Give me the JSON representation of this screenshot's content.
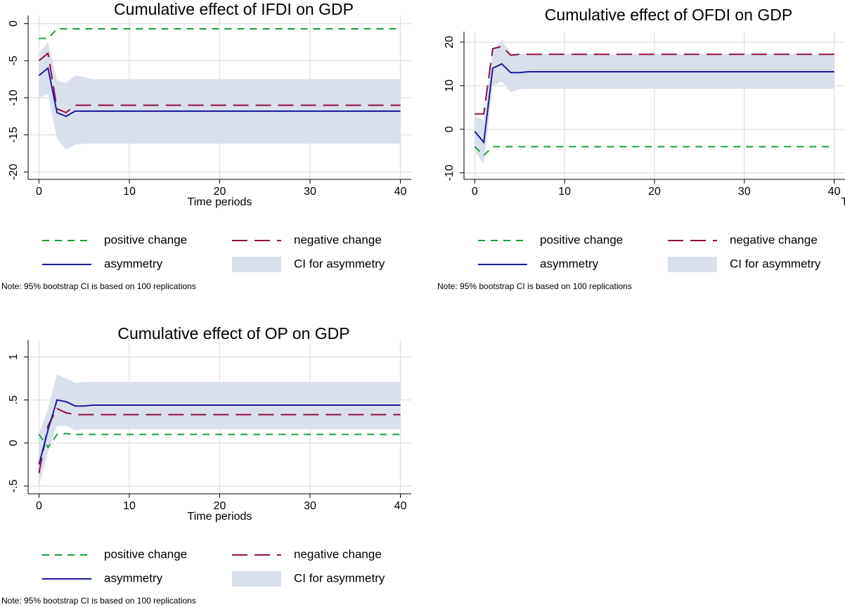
{
  "chart_data": [
    {
      "type": "line",
      "title": "Cumulative effect of IFDI on GDP",
      "xlabel": "Time periods",
      "note": "Note: 95% bootstrap CI is based on 100 replications",
      "x": [
        0,
        1,
        2,
        3,
        4,
        5,
        6,
        40
      ],
      "xlim": [
        -1.2,
        41.2
      ],
      "xticks": [
        0,
        10,
        20,
        30,
        40
      ],
      "ylim": [
        -21,
        1.1
      ],
      "yticks": [
        0,
        -5,
        -10,
        -15,
        -20
      ],
      "grid": true,
      "legend": "bottom",
      "series": [
        {
          "name": "positive change",
          "color": "#1a9e3a",
          "dash": "short",
          "values": [
            -2,
            -2,
            -0.7,
            -0.7,
            -0.7,
            -0.7,
            -0.7,
            -0.7
          ]
        },
        {
          "name": "negative change",
          "color": "#90103e",
          "dash": "long",
          "values": [
            -5,
            -4,
            -11.5,
            -12,
            -11,
            -11,
            -11,
            -11
          ]
        },
        {
          "name": "asymmetry",
          "color": "#1a1a9a",
          "dash": "solid",
          "values": [
            -7,
            -6,
            -12,
            -12.5,
            -11.8,
            -11.8,
            -11.8,
            -11.8
          ]
        },
        {
          "name": "CI for asymmetry",
          "color": "#d9e0ec",
          "lower": [
            -10,
            -9.5,
            -15.5,
            -17,
            -16.3,
            -16.2,
            -16.2,
            -16.2
          ],
          "upper": [
            -4,
            -2.5,
            -7.7,
            -8,
            -7,
            -7.2,
            -7.5,
            -7.5
          ]
        }
      ]
    },
    {
      "type": "line",
      "title": "Cumulative effect of OFDI on GDP",
      "xlabel": "Time periods",
      "note": "Note: 95% bootstrap CI is based on 100 replications",
      "x": [
        0,
        1,
        2,
        3,
        4,
        5,
        6,
        40
      ],
      "xlim": [
        -1.2,
        41.2
      ],
      "xticks": [
        0,
        10,
        20,
        30,
        40
      ],
      "ylim": [
        -11.5,
        22.4
      ],
      "yticks": [
        20,
        10,
        0,
        -10
      ],
      "grid": true,
      "legend": "bottom",
      "series": [
        {
          "name": "positive change",
          "color": "#1a9e3a",
          "dash": "short",
          "values": [
            -4,
            -6,
            -4,
            -4,
            -4,
            -4,
            -4,
            -4
          ]
        },
        {
          "name": "negative change",
          "color": "#90103e",
          "dash": "long",
          "values": [
            3.5,
            3.5,
            18.5,
            19,
            17,
            17.2,
            17.2,
            17.2
          ]
        },
        {
          "name": "asymmetry",
          "color": "#1a1a9a",
          "dash": "solid",
          "values": [
            -0.5,
            -3,
            14,
            15,
            13,
            13,
            13.2,
            13.2
          ]
        },
        {
          "name": "CI for asymmetry",
          "color": "#d9e0ec",
          "lower": [
            -5,
            -8,
            10,
            11,
            8.5,
            9.2,
            9.3,
            9.3
          ],
          "upper": [
            3,
            2,
            18,
            20.5,
            17.5,
            17.3,
            17.3,
            17.3
          ]
        }
      ]
    },
    {
      "type": "line",
      "title": "Cumulative effect of OP on GDP",
      "xlabel": "Time periods",
      "note": "Note: 95% bootstrap CI is based on 100 replications",
      "x": [
        0,
        1,
        2,
        3,
        4,
        5,
        6,
        40
      ],
      "xlim": [
        -1.2,
        41.2
      ],
      "xticks": [
        0,
        10,
        20,
        30,
        40
      ],
      "ylim": [
        -0.59,
        1.2
      ],
      "yticks": [
        1,
        {
          "value": 0.5,
          "label": ".5"
        },
        0,
        {
          "value": -0.5,
          "label": "-.5"
        }
      ],
      "grid": true,
      "legend": "bottom",
      "series": [
        {
          "name": "positive change",
          "color": "#1a9e3a",
          "dash": "short",
          "values": [
            0.1,
            -0.05,
            0.1,
            0.11,
            0.1,
            0.1,
            0.1,
            0.1
          ]
        },
        {
          "name": "negative change",
          "color": "#90103e",
          "dash": "long",
          "values": [
            -0.35,
            0.2,
            0.4,
            0.35,
            0.33,
            0.33,
            0.33,
            0.33
          ]
        },
        {
          "name": "asymmetry",
          "color": "#1a1a9a",
          "dash": "solid",
          "values": [
            -0.25,
            0.15,
            0.5,
            0.48,
            0.43,
            0.43,
            0.44,
            0.44
          ]
        },
        {
          "name": "CI for asymmetry",
          "color": "#d9e0ec",
          "lower": [
            -0.5,
            -0.1,
            0.2,
            0.2,
            0.15,
            0.16,
            0.16,
            0.16
          ],
          "upper": [
            0.1,
            0.4,
            0.8,
            0.75,
            0.7,
            0.71,
            0.71,
            0.71
          ]
        }
      ]
    }
  ]
}
